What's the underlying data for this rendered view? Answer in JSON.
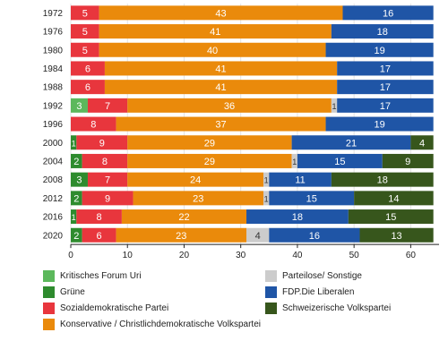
{
  "chart_data": {
    "type": "bar",
    "orientation": "horizontal",
    "stacked": true,
    "title": "",
    "xlabel": "",
    "ylabel": "",
    "xlim": [
      0,
      65
    ],
    "xticks": [
      0,
      10,
      20,
      30,
      40,
      50,
      60
    ],
    "categories": [
      "1972",
      "1976",
      "1980",
      "1984",
      "1988",
      "1992",
      "1996",
      "2000",
      "2004",
      "2008",
      "2012",
      "2016",
      "2020"
    ],
    "series": [
      {
        "name": "Kritisches Forum Uri",
        "color": "#5cb85c",
        "labelColor": "#ffffff",
        "values": [
          0,
          0,
          0,
          0,
          0,
          3,
          0,
          0,
          0,
          0,
          0,
          0,
          0
        ]
      },
      {
        "name": "Grüne",
        "color": "#2e8b2e",
        "labelColor": "#ffffff",
        "values": [
          0,
          0,
          0,
          0,
          0,
          0,
          0,
          1,
          2,
          3,
          2,
          1,
          2
        ]
      },
      {
        "name": "Sozialdemokratische Partei",
        "color": "#e8363d",
        "labelColor": "#ffffff",
        "values": [
          5,
          5,
          5,
          6,
          6,
          7,
          8,
          9,
          8,
          7,
          9,
          8,
          6
        ]
      },
      {
        "name": "Konservative / Christlichdemokratische Volkspartei",
        "color": "#ea8a0b",
        "labelColor": "#ffffff",
        "values": [
          43,
          41,
          40,
          41,
          41,
          36,
          37,
          29,
          29,
          24,
          23,
          22,
          23
        ]
      },
      {
        "name": "Parteilose/ Sonstige",
        "color": "#cccccc",
        "labelColor": "#333333",
        "values": [
          0,
          0,
          0,
          0,
          0,
          1,
          0,
          0,
          1,
          1,
          1,
          0,
          4
        ]
      },
      {
        "name": "FDP.Die Liberalen",
        "color": "#1f55a6",
        "labelColor": "#ffffff",
        "values": [
          16,
          18,
          19,
          17,
          17,
          17,
          19,
          21,
          15,
          11,
          15,
          18,
          16
        ]
      },
      {
        "name": "Schweizerische Volkspartei",
        "color": "#37561c",
        "labelColor": "#ffffff",
        "values": [
          0,
          0,
          0,
          0,
          0,
          0,
          0,
          4,
          9,
          18,
          14,
          15,
          13
        ]
      }
    ],
    "legend_position": "bottom",
    "legend_order": [
      0,
      4,
      1,
      5,
      2,
      6,
      3
    ],
    "grid": true
  }
}
